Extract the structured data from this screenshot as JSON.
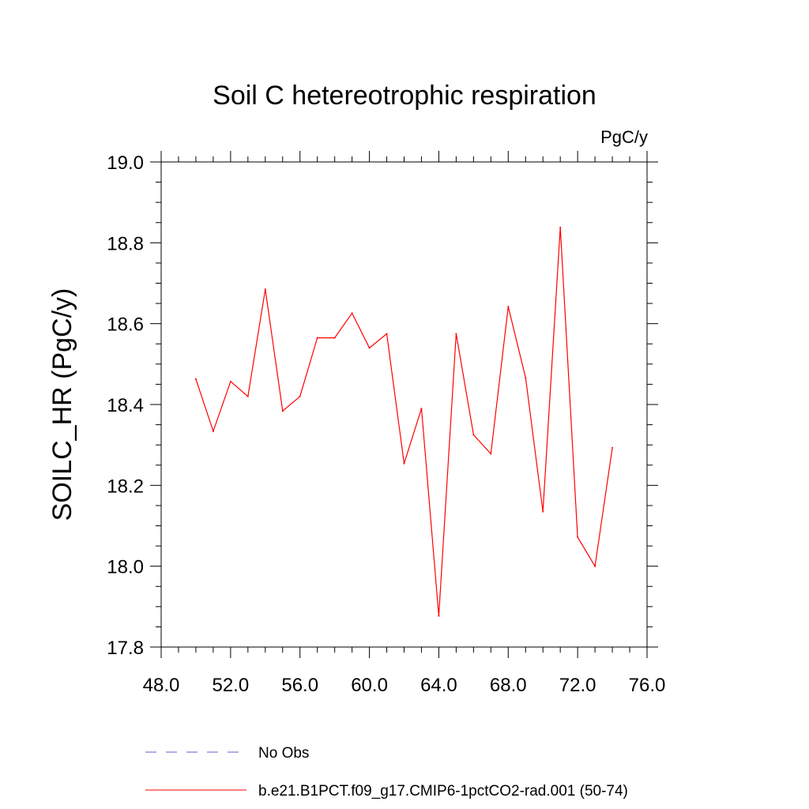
{
  "chart_data": {
    "type": "line",
    "title": "Soil C hetereotrophic respiration",
    "units_label": "PgC/y",
    "xlabel": "",
    "ylabel": "SOILC_HR  (PgC/y)",
    "xlim": [
      48,
      76
    ],
    "ylim": [
      17.8,
      19.0
    ],
    "x_ticks": [
      "48.0",
      "52.0",
      "56.0",
      "60.0",
      "64.0",
      "68.0",
      "72.0",
      "76.0"
    ],
    "y_ticks": [
      "17.8",
      "18.0",
      "18.2",
      "18.4",
      "18.6",
      "18.8",
      "19.0"
    ],
    "grid": false,
    "legend_position": "bottom",
    "series": [
      {
        "name": "b.e21.B1PCT.f09_g17.CMIP6-1pctCO2-rad.001 (50-74)",
        "color": "#ff0000",
        "dash": "solid",
        "x": [
          50,
          51,
          52,
          53,
          54,
          55,
          56,
          57,
          58,
          59,
          60,
          61,
          62,
          63,
          64,
          65,
          66,
          67,
          68,
          69,
          70,
          71,
          72,
          73,
          74
        ],
        "y": [
          18.463,
          18.334,
          18.457,
          18.42,
          18.685,
          18.384,
          18.42,
          18.565,
          18.565,
          18.626,
          18.54,
          18.575,
          18.254,
          18.39,
          17.877,
          18.575,
          18.325,
          18.278,
          18.642,
          18.466,
          18.135,
          18.838,
          18.072,
          18.0,
          18.293
        ]
      }
    ],
    "legend": [
      {
        "label": "No Obs",
        "color": "#6a5acd",
        "dash": "dashed"
      },
      {
        "label": "b.e21.B1PCT.f09_g17.CMIP6-1pctCO2-rad.001 (50-74)",
        "color": "#ff0000",
        "dash": "solid"
      }
    ]
  }
}
